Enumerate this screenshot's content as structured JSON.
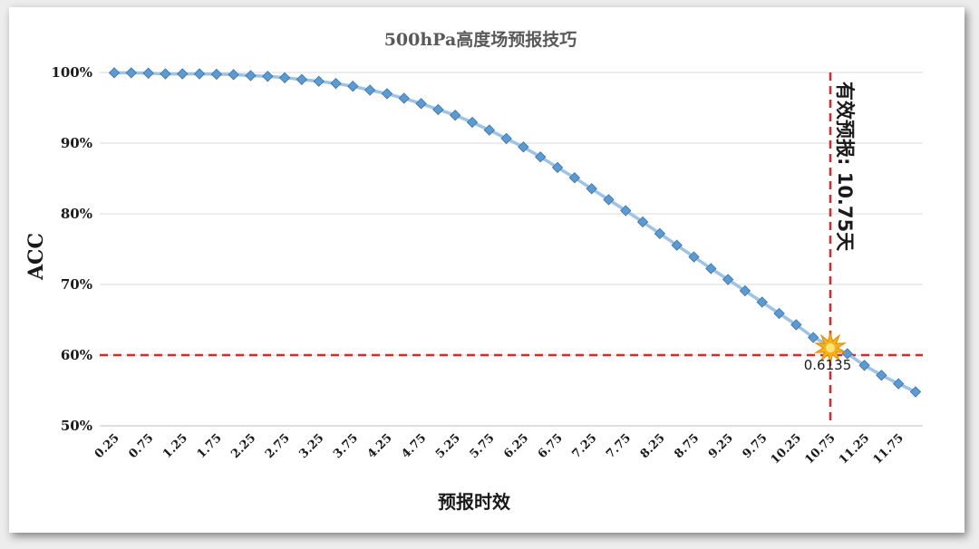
{
  "chart_data": {
    "type": "line",
    "title": "500hPa高度场预报技巧",
    "xlabel": "预报时效",
    "ylabel": "ACC",
    "ylim": [
      0.5,
      1.0
    ],
    "y_ticks": [
      "50%",
      "60%",
      "70%",
      "80%",
      "90%",
      "100%"
    ],
    "x_tick_labels": [
      "0.25",
      "0.75",
      "1.25",
      "1.75",
      "2.25",
      "2.75",
      "3.25",
      "3.75",
      "4.25",
      "4.75",
      "5.25",
      "5.75",
      "6.25",
      "6.75",
      "7.25",
      "7.75",
      "8.25",
      "8.75",
      "9.25",
      "9.75",
      "10.25",
      "10.75",
      "11.25",
      "11.75"
    ],
    "grid": true,
    "series": [
      {
        "color": "#5b9bd5",
        "x": [
          0.25,
          0.5,
          0.75,
          1.0,
          1.25,
          1.5,
          1.75,
          2.0,
          2.25,
          2.5,
          2.75,
          3.0,
          3.25,
          3.5,
          3.75,
          4.0,
          4.25,
          4.5,
          4.75,
          5.0,
          5.25,
          5.5,
          5.75,
          6.0,
          6.25,
          6.5,
          6.75,
          7.0,
          7.25,
          7.5,
          7.75,
          8.0,
          8.25,
          8.5,
          8.75,
          9.0,
          9.25,
          9.5,
          9.75,
          10.0,
          10.25,
          10.5,
          11.0,
          11.25,
          11.5,
          11.75,
          12.0
        ],
        "values": [
          0.9995,
          0.9995,
          0.999,
          0.998,
          0.998,
          0.998,
          0.9975,
          0.997,
          0.9955,
          0.9945,
          0.9925,
          0.99,
          0.9875,
          0.9845,
          0.9805,
          0.975,
          0.97,
          0.9635,
          0.956,
          0.9475,
          0.9395,
          0.9295,
          0.9185,
          0.9065,
          0.8945,
          0.8805,
          0.8655,
          0.851,
          0.8355,
          0.82,
          0.8045,
          0.7885,
          0.772,
          0.7555,
          0.739,
          0.7225,
          0.707,
          0.691,
          0.675,
          0.659,
          0.643,
          0.625,
          0.602,
          0.5855,
          0.5715,
          0.5595,
          0.548
        ]
      }
    ],
    "threshold": {
      "value": 0.6,
      "color": "#d42a2a"
    },
    "marker_x": 10.75,
    "annotations": {
      "valid_forecast": "有效预报: 10.75天",
      "point_label": "0.6135"
    }
  }
}
